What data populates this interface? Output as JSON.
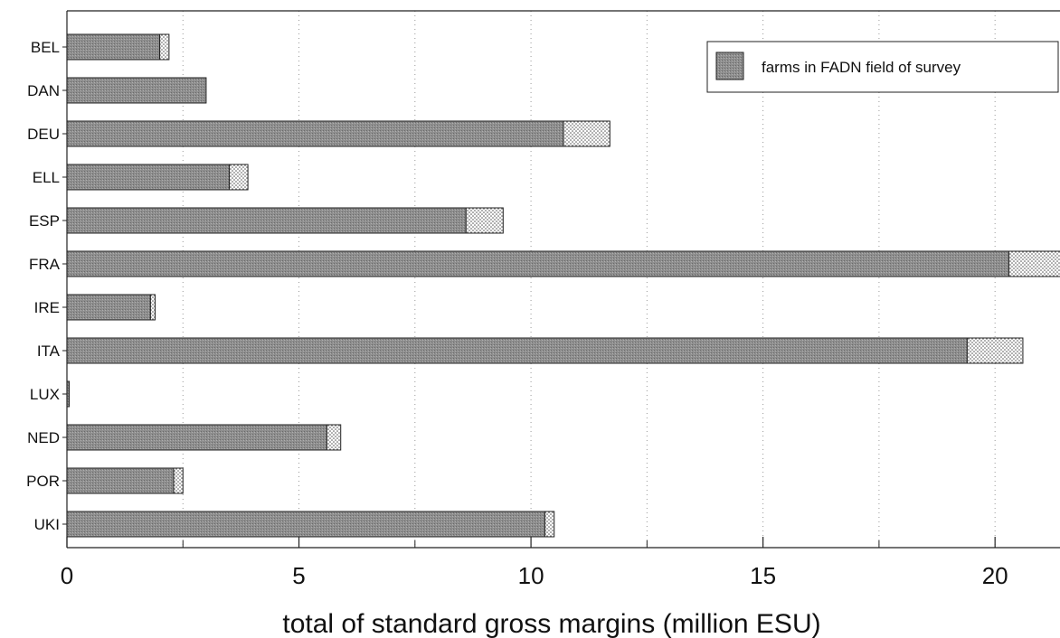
{
  "chart_data": {
    "type": "bar",
    "orientation": "horizontal",
    "stacked": true,
    "categories": [
      "BEL",
      "DAN",
      "DEU",
      "ELL",
      "ESP",
      "FRA",
      "IRE",
      "ITA",
      "LUX",
      "NED",
      "POR",
      "UKI"
    ],
    "series": [
      {
        "name": "farms in FADN field of survey",
        "color": "#8c8c8c",
        "values": [
          2.0,
          3.0,
          10.7,
          3.5,
          8.6,
          20.3,
          1.8,
          19.4,
          0.05,
          5.6,
          2.3,
          10.3
        ]
      },
      {
        "color": "#e6e6e6",
        "values": [
          0.2,
          0.0,
          1.0,
          0.4,
          0.8,
          1.2,
          0.1,
          1.2,
          0.0,
          0.3,
          0.2,
          0.2
        ]
      }
    ],
    "xlabel": "total of standard gross margins (million ESU)",
    "ylabel": "",
    "xlim": [
      0,
      21.4
    ],
    "xticks": [
      0,
      5,
      10,
      15,
      20
    ],
    "minor_xticks": [
      2.5,
      7.5,
      12.5,
      17.5
    ],
    "grid": "vertical dotted",
    "legend_position": "top-right"
  }
}
